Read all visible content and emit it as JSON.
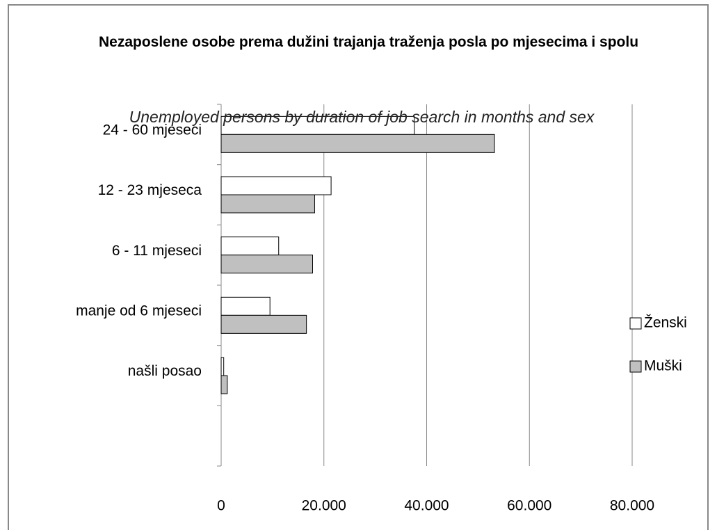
{
  "chart_data": {
    "type": "hbar",
    "title": "Nezaposlene osobe prema dužini trajanja traženja posla po mjesecima i spolu",
    "subtitle": "Unemployed persons by duration of job search in months and sex",
    "categories": [
      "24 - 60 mjeseci",
      "12 - 23 mjeseca",
      "6 - 11 mjeseci",
      "manje od 6 mjeseci",
      "našli posao",
      null
    ],
    "series": [
      {
        "name": "Ženski",
        "color": "#ffffff",
        "values": [
          37600,
          21400,
          11200,
          9500,
          500,
          null
        ]
      },
      {
        "name": "Muški",
        "color": "#c0c0c0",
        "values": [
          53200,
          18200,
          17800,
          16600,
          1200,
          null
        ]
      }
    ],
    "xlim": [
      0,
      80000
    ],
    "xticks": [
      0,
      {
        "value": 20000,
        "label": "20.000"
      },
      {
        "value": 40000,
        "label": "40.000"
      },
      {
        "value": 60000,
        "label": "60.000"
      },
      {
        "value": 80000,
        "label": "80.000"
      }
    ],
    "grid": true,
    "legend": "right"
  }
}
